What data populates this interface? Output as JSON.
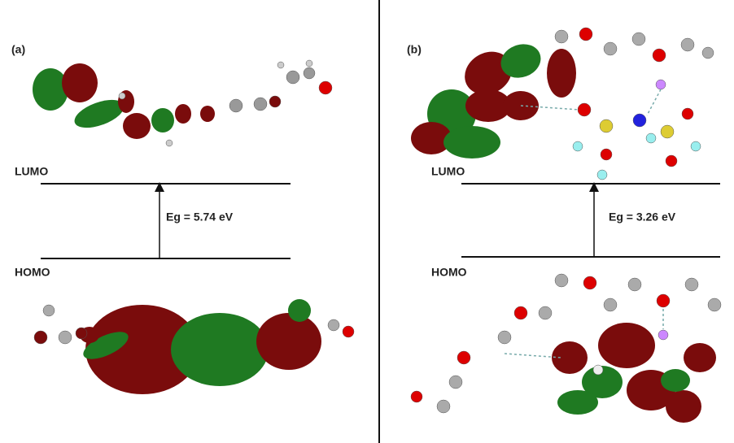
{
  "panels": [
    {
      "label": "(a)",
      "lumo": "LUMO",
      "homo": "HOMO",
      "gap": "Eg = 5.74 eV"
    },
    {
      "label": "(b)",
      "lumo": "LUMO",
      "homo": "HOMO",
      "gap": "Eg = 3.26 eV"
    }
  ]
}
